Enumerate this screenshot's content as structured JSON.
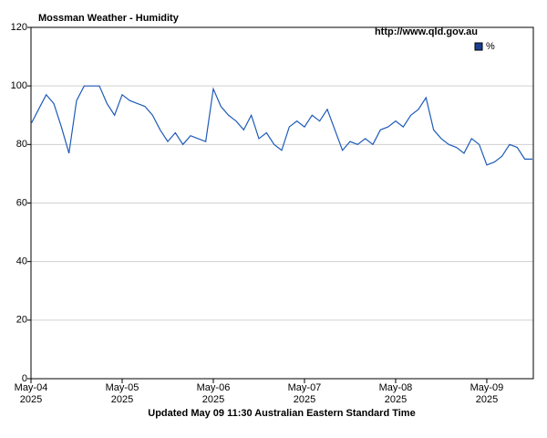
{
  "chart_data": {
    "type": "line",
    "title": "Mossman Weather - Humidity",
    "annotation": "http://www.qld.gov.au",
    "footer": "Updated May 09 11:30 Australian Eastern Standard Time",
    "x": [
      "2025-05-04T00:00",
      "2025-05-04T02:00",
      "2025-05-04T04:00",
      "2025-05-04T06:00",
      "2025-05-04T08:00",
      "2025-05-04T10:00",
      "2025-05-04T12:00",
      "2025-05-04T14:00",
      "2025-05-04T16:00",
      "2025-05-04T18:00",
      "2025-05-04T20:00",
      "2025-05-04T22:00",
      "2025-05-05T00:00",
      "2025-05-05T02:00",
      "2025-05-05T04:00",
      "2025-05-05T06:00",
      "2025-05-05T08:00",
      "2025-05-05T10:00",
      "2025-05-05T12:00",
      "2025-05-05T14:00",
      "2025-05-05T16:00",
      "2025-05-05T18:00",
      "2025-05-05T20:00",
      "2025-05-05T22:00",
      "2025-05-06T00:00",
      "2025-05-06T02:00",
      "2025-05-06T04:00",
      "2025-05-06T06:00",
      "2025-05-06T08:00",
      "2025-05-06T10:00",
      "2025-05-06T12:00",
      "2025-05-06T14:00",
      "2025-05-06T16:00",
      "2025-05-06T18:00",
      "2025-05-06T20:00",
      "2025-05-06T22:00",
      "2025-05-07T00:00",
      "2025-05-07T02:00",
      "2025-05-07T04:00",
      "2025-05-07T06:00",
      "2025-05-07T08:00",
      "2025-05-07T10:00",
      "2025-05-07T12:00",
      "2025-05-07T14:00",
      "2025-05-07T16:00",
      "2025-05-07T18:00",
      "2025-05-07T20:00",
      "2025-05-07T22:00",
      "2025-05-08T00:00",
      "2025-05-08T02:00",
      "2025-05-08T04:00",
      "2025-05-08T06:00",
      "2025-05-08T08:00",
      "2025-05-08T10:00",
      "2025-05-08T12:00",
      "2025-05-08T14:00",
      "2025-05-08T16:00",
      "2025-05-08T18:00",
      "2025-05-08T20:00",
      "2025-05-08T22:00",
      "2025-05-09T00:00",
      "2025-05-09T02:00",
      "2025-05-09T04:00",
      "2025-05-09T06:00",
      "2025-05-09T08:00",
      "2025-05-09T10:00",
      "2025-05-09T12:00"
    ],
    "series": [
      {
        "name": "%",
        "color": "#1f5bb8",
        "legend_color": "#1a3f8f",
        "values": [
          87,
          92,
          97,
          94,
          86,
          77,
          95,
          100,
          100,
          100,
          94,
          90,
          97,
          95,
          94,
          93,
          90,
          85,
          81,
          84,
          80,
          83,
          82,
          81,
          99,
          93,
          90,
          88,
          85,
          90,
          82,
          84,
          80,
          78,
          86,
          88,
          86,
          90,
          88,
          92,
          85,
          78,
          81,
          80,
          82,
          80,
          85,
          86,
          88,
          86,
          90,
          92,
          96,
          85,
          82,
          80,
          79,
          77,
          82,
          80,
          73,
          74,
          76,
          80,
          79,
          75,
          75
        ]
      }
    ],
    "xlim": [
      "2025-05-04T00:00",
      "2025-05-09T12:15"
    ],
    "xticks": [
      {
        "value": "2025-05-04T00:00",
        "label": "May-04 2025"
      },
      {
        "value": "2025-05-05T00:00",
        "label": "May-05 2025"
      },
      {
        "value": "2025-05-06T00:00",
        "label": "May-06 2025"
      },
      {
        "value": "2025-05-07T00:00",
        "label": "May-07 2025"
      },
      {
        "value": "2025-05-08T00:00",
        "label": "May-08 2025"
      },
      {
        "value": "2025-05-09T00:00",
        "label": "May-09 2025"
      }
    ],
    "ylim": [
      0,
      120
    ],
    "yticks": [
      0,
      20,
      40,
      60,
      80,
      100,
      120
    ],
    "grid": true,
    "legend": "upper right"
  }
}
